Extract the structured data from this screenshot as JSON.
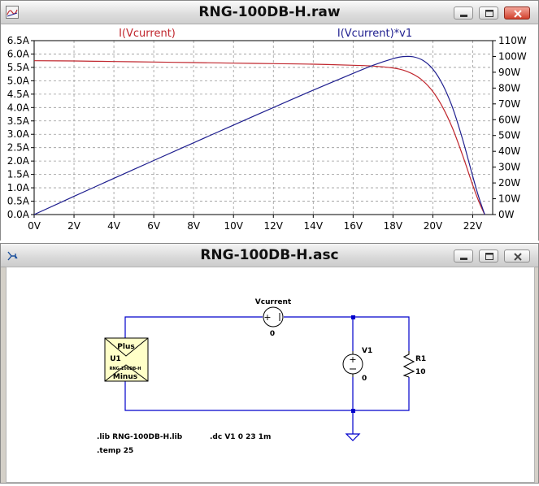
{
  "waveform_window": {
    "title": "RNG-100DB-H.raw",
    "trace_labels": [
      "I(Vcurrent)",
      "I(Vcurrent)*v1"
    ]
  },
  "schematic_window": {
    "title": "RNG-100DB-H.asc",
    "components": {
      "vcurrent_name": "Vcurrent",
      "vcurrent_value": "0",
      "v1_name": "V1",
      "v1_value": "0",
      "r1_name": "R1",
      "r1_value": "10",
      "u1_plus": "Plus",
      "u1_name": "U1",
      "u1_part": "RNG-100DB-H",
      "u1_minus": "Minus"
    },
    "directives": {
      "lib": ".lib RNG-100DB-H.lib",
      "dc": ".dc V1 0 23 1m",
      "temp": ".temp 25"
    }
  },
  "colors": {
    "current_trace": "#c0262d",
    "power_trace": "#1f1f8f",
    "wire": "#0000cc",
    "grid": "#999999"
  },
  "chart_data": {
    "type": "line",
    "xlabel": "",
    "x_ticks": [
      "0V",
      "2V",
      "4V",
      "6V",
      "8V",
      "10V",
      "12V",
      "14V",
      "16V",
      "18V",
      "20V",
      "22V"
    ],
    "xlim": [
      0,
      23
    ],
    "left_axis": {
      "ticks": [
        "0.0A",
        "0.5A",
        "1.0A",
        "1.5A",
        "2.0A",
        "2.5A",
        "3.0A",
        "3.5A",
        "4.0A",
        "4.5A",
        "5.0A",
        "5.5A",
        "6.0A",
        "6.5A"
      ],
      "ylim": [
        0,
        6.5
      ]
    },
    "right_axis": {
      "ticks": [
        "0W",
        "10W",
        "20W",
        "30W",
        "40W",
        "50W",
        "60W",
        "70W",
        "80W",
        "90W",
        "100W",
        "110W"
      ],
      "ylim": [
        0,
        110
      ]
    },
    "grid": true,
    "series": [
      {
        "name": "I(Vcurrent)",
        "axis": "left",
        "x": [
          0,
          2,
          4,
          6,
          8,
          10,
          12,
          14,
          16,
          17,
          18,
          18.5,
          19,
          19.5,
          20,
          20.5,
          21,
          21.5,
          22,
          22.3,
          22.6
        ],
        "y": [
          5.75,
          5.74,
          5.72,
          5.7,
          5.68,
          5.66,
          5.64,
          5.62,
          5.58,
          5.55,
          5.48,
          5.4,
          5.25,
          5.0,
          4.6,
          4.0,
          3.2,
          2.2,
          1.1,
          0.5,
          0.0
        ]
      },
      {
        "name": "I(Vcurrent)*v1",
        "axis": "right",
        "x": [
          0,
          2,
          4,
          6,
          8,
          10,
          12,
          14,
          16,
          17,
          18,
          18.5,
          19,
          19.5,
          20,
          20.5,
          21,
          21.5,
          22,
          22.3,
          22.6
        ],
        "y": [
          0,
          11.5,
          22.9,
          34.2,
          45.4,
          56.6,
          67.7,
          78.7,
          89.3,
          94.4,
          98.6,
          99.9,
          99.8,
          97.5,
          92.0,
          82.0,
          67.2,
          47.3,
          24.2,
          11.2,
          0
        ]
      }
    ]
  }
}
